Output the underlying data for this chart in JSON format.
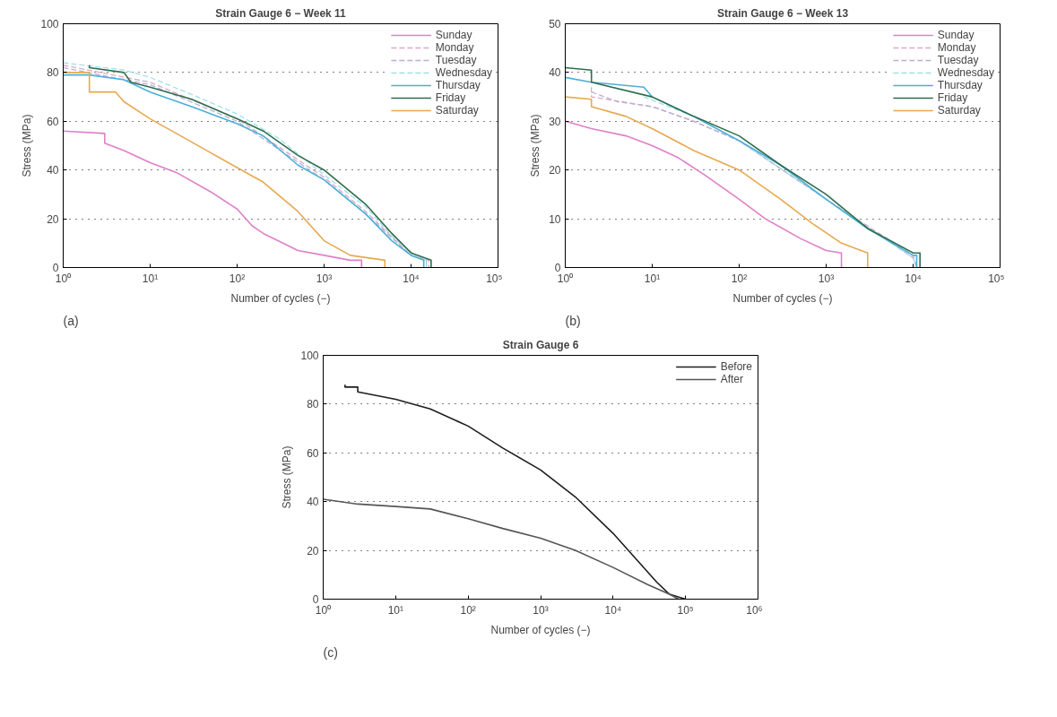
{
  "chart_data": [
    {
      "type": "line",
      "title": "Strain Gauge 6 − Week 11",
      "xlabel": "Number of cycles (−)",
      "ylabel": "Stress (MPa)",
      "log": "x",
      "grid": "y",
      "legend": "top right",
      "annotations": [
        "(a)"
      ],
      "xlim": [
        1,
        100000
      ],
      "xticks": [
        {
          "value": 1,
          "label": "10⁰"
        },
        {
          "value": 10,
          "label": "10¹"
        },
        {
          "value": 100,
          "label": "10²"
        },
        {
          "value": 1000,
          "label": "10³"
        },
        {
          "value": 10000,
          "label": "10⁴"
        },
        {
          "value": 100000,
          "label": "10⁵"
        }
      ],
      "ylim": [
        0,
        100
      ],
      "yticks": [
        0,
        20,
        40,
        60,
        80,
        100
      ],
      "series": [
        {
          "name": "Sunday",
          "color": "#e07fc8",
          "x": [
            1,
            3,
            3,
            5,
            10,
            20,
            50,
            100,
            150,
            200,
            500,
            1000,
            2000,
            2700,
            2700
          ],
          "values": [
            56,
            55,
            51,
            48,
            43,
            39,
            31,
            24,
            17,
            14,
            7,
            5,
            3,
            3,
            0
          ]
        },
        {
          "name": "Monday",
          "color": "#d8a8c8",
          "line_style": "dashed",
          "x": [
            1,
            10,
            100,
            1000,
            3000,
            10000,
            16000,
            16000
          ],
          "values": [
            83,
            76,
            61,
            37,
            23,
            5,
            3,
            0
          ]
        },
        {
          "name": "Tuesday",
          "color": "#b8b0d8",
          "line_style": "dashed",
          "x": [
            1,
            10,
            100,
            1000,
            3000,
            10000,
            15000,
            15000
          ],
          "values": [
            82,
            75,
            60,
            36,
            22,
            5,
            3,
            0
          ]
        },
        {
          "name": "Wednesday",
          "color": "#a0e0e8",
          "line_style": "dashed",
          "x": [
            1,
            5,
            10,
            30,
            100,
            300,
            1000,
            3000,
            6000,
            12000,
            15000,
            15000
          ],
          "values": [
            84,
            81,
            78,
            71,
            63,
            53,
            38,
            25,
            13,
            4,
            3,
            0
          ]
        },
        {
          "name": "Thursday",
          "color": "#4ab0d8",
          "x": [
            1,
            2,
            5,
            10,
            30,
            100,
            200,
            500,
            1000,
            3000,
            6000,
            10000,
            14000,
            14000
          ],
          "values": [
            79,
            79,
            77,
            72,
            66,
            59,
            54,
            42,
            36,
            22,
            11,
            5,
            3,
            0
          ]
        },
        {
          "name": "Friday",
          "color": "#2e6e4e",
          "x": [
            2,
            2,
            5,
            6,
            10,
            30,
            100,
            200,
            500,
            1000,
            3000,
            6000,
            10000,
            17000,
            17000
          ],
          "values": [
            83,
            82,
            80,
            76,
            74,
            69,
            61,
            56,
            46,
            40,
            26,
            14,
            6,
            3,
            0
          ]
        },
        {
          "name": "Saturday",
          "color": "#e8a850",
          "x": [
            1,
            2,
            2,
            4,
            5,
            10,
            20,
            50,
            100,
            200,
            500,
            1000,
            2000,
            5000,
            5000
          ],
          "values": [
            80,
            80,
            72,
            72,
            68,
            61,
            55,
            47,
            41,
            35,
            23,
            11,
            5,
            3,
            0
          ]
        }
      ]
    },
    {
      "type": "line",
      "title": "Strain Gauge 6 − Week 13",
      "xlabel": "Number of cycles (−)",
      "ylabel": "Stress (MPa)",
      "log": "x",
      "grid": "y",
      "legend": "top right",
      "annotations": [
        "(b)"
      ],
      "xlim": [
        1,
        100000
      ],
      "xticks": [
        {
          "value": 1,
          "label": "10⁰"
        },
        {
          "value": 10,
          "label": "10¹"
        },
        {
          "value": 100,
          "label": "10²"
        },
        {
          "value": 1000,
          "label": "10³"
        },
        {
          "value": 10000,
          "label": "10⁴"
        },
        {
          "value": 100000,
          "label": "10⁵"
        }
      ],
      "ylim": [
        0,
        50
      ],
      "yticks": [
        0,
        10,
        20,
        30,
        40,
        50
      ],
      "series": [
        {
          "name": "Sunday",
          "color": "#e07fc8",
          "x": [
            1,
            2,
            5,
            10,
            20,
            40,
            100,
            200,
            500,
            1000,
            1500,
            1500
          ],
          "values": [
            30,
            28.5,
            27,
            25,
            22.5,
            19,
            14,
            10,
            6,
            3.5,
            3,
            0
          ]
        },
        {
          "name": "Monday",
          "color": "#d8a8c8",
          "line_style": "dashed",
          "x": [
            2,
            2,
            10,
            30,
            100,
            1000,
            10000,
            11000
          ],
          "values": [
            37,
            35,
            33,
            30,
            26,
            14,
            2.5,
            0
          ]
        },
        {
          "name": "Tuesday",
          "color": "#b8b0d8",
          "line_style": "dashed",
          "x": [
            2,
            4,
            10,
            30,
            100,
            1000,
            10000,
            11000
          ],
          "values": [
            36,
            34,
            33,
            30,
            26,
            14,
            2,
            0
          ]
        },
        {
          "name": "Wednesday",
          "color": "#a0e0e8",
          "line_style": "dashed",
          "x": [
            8,
            30,
            100,
            1000,
            10000,
            11000
          ],
          "values": [
            35,
            31,
            26,
            14,
            2,
            0
          ]
        },
        {
          "name": "Thursday",
          "color": "#4ab0d8",
          "x": [
            1,
            2,
            8,
            10,
            30,
            100,
            300,
            1000,
            3000,
            10000,
            11000,
            11000
          ],
          "values": [
            39,
            38,
            37,
            35,
            31,
            26,
            21,
            14,
            8,
            2.5,
            2.5,
            0
          ]
        },
        {
          "name": "Friday",
          "color": "#2e6e4e",
          "x": [
            1,
            2,
            2,
            10,
            30,
            100,
            300,
            1000,
            3000,
            10000,
            12000,
            12000
          ],
          "values": [
            41,
            40.5,
            38,
            35,
            31,
            27,
            21,
            15,
            8,
            3,
            3,
            0
          ]
        },
        {
          "name": "Saturday",
          "color": "#e8a850",
          "x": [
            1,
            2,
            2,
            5,
            10,
            30,
            100,
            300,
            700,
            1500,
            3000,
            3000
          ],
          "values": [
            35,
            34.5,
            33,
            31,
            28.5,
            24,
            20,
            14,
            9,
            5,
            3,
            0
          ]
        }
      ]
    },
    {
      "type": "line",
      "title": "Strain Gauge 6",
      "xlabel": "Number of cycles (−)",
      "ylabel": "Stress (MPa)",
      "log": "x",
      "grid": "y",
      "legend": "top right",
      "annotations": [
        "(c)"
      ],
      "xlim": [
        1,
        1000000
      ],
      "xticks": [
        {
          "value": 1,
          "label": "10⁰"
        },
        {
          "value": 10,
          "label": "10¹"
        },
        {
          "value": 100,
          "label": "10²"
        },
        {
          "value": 1000,
          "label": "10³"
        },
        {
          "value": 10000,
          "label": "10⁴"
        },
        {
          "value": 100000,
          "label": "10⁵"
        },
        {
          "value": 1000000,
          "label": "10⁶"
        }
      ],
      "ylim": [
        0,
        100
      ],
      "yticks": [
        0,
        20,
        40,
        60,
        80,
        100
      ],
      "series": [
        {
          "name": "Before",
          "color": "#1e1e1e",
          "x": [
            2,
            2,
            3,
            3,
            10,
            30,
            100,
            300,
            1000,
            3000,
            10000,
            20000,
            40000,
            60000,
            100000
          ],
          "values": [
            88,
            87,
            87,
            85,
            82,
            78,
            71,
            62,
            53,
            42,
            27,
            17,
            7,
            2,
            0
          ]
        },
        {
          "name": "After",
          "color": "#555555",
          "x": [
            1,
            3,
            10,
            30,
            100,
            300,
            1000,
            3000,
            10000,
            30000,
            60000,
            80000
          ],
          "values": [
            41,
            39,
            38,
            37,
            33,
            29,
            25,
            20,
            13,
            6,
            2,
            0
          ]
        }
      ]
    }
  ]
}
